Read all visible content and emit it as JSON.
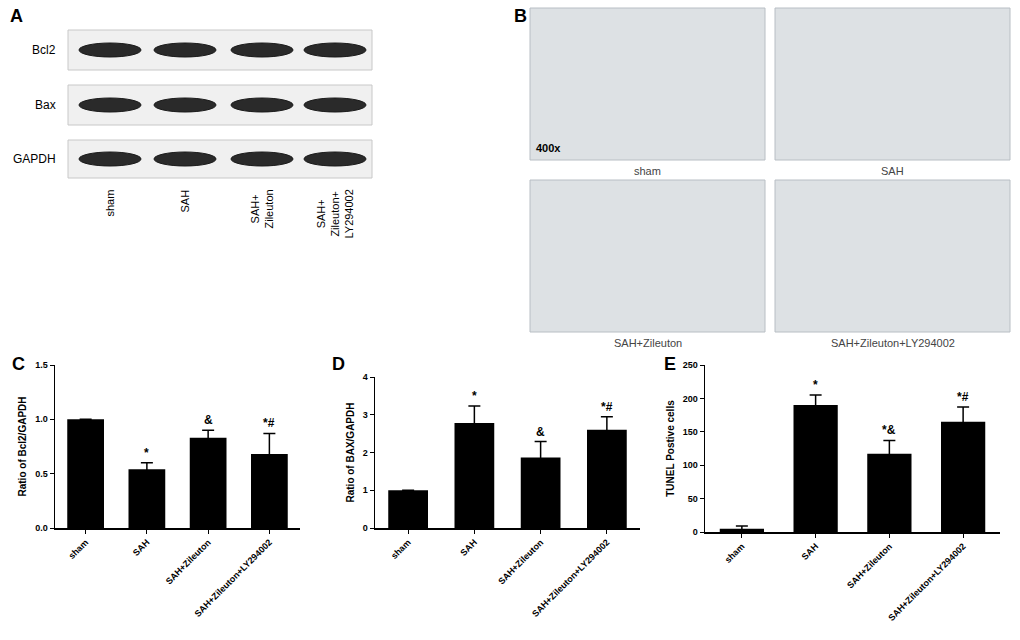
{
  "blot": {
    "panel": "A",
    "rows": [
      "Bcl2",
      "Bax",
      "GAPDH"
    ],
    "lanes": [
      [
        "sham"
      ],
      [
        "SAH"
      ],
      [
        "SAH+",
        "Zileuton"
      ],
      [
        "SAH+",
        "Zileuton+",
        "LY294002"
      ]
    ]
  },
  "micrographs": {
    "panel": "B",
    "magnification": "400x",
    "images": [
      "sham",
      "SAH",
      "SAH+Zileuton",
      "SAH+Zileuton+LY294002"
    ]
  },
  "chart_data": [
    {
      "panel": "C",
      "type": "bar",
      "categories": [
        "sham",
        "SAH",
        "SAH+Zileuton",
        "SAH+Zileuton+LY294002"
      ],
      "values": [
        1.0,
        0.54,
        0.83,
        0.68
      ],
      "errors": [
        0,
        0.06,
        0.07,
        0.19
      ],
      "significance": [
        null,
        "*",
        "&",
        "*#"
      ],
      "color": "#000000",
      "y_label": "Ratio of Bcl2/GAPDH",
      "ylim": [
        0,
        1.5
      ],
      "yticks": [
        {
          "value": 0,
          "label": "0.0"
        },
        {
          "value": 0.5,
          "label": "0.5"
        },
        {
          "value": 1,
          "label": "1.0"
        },
        {
          "value": 1.5,
          "label": "1.5"
        }
      ],
      "grid": false
    },
    {
      "panel": "D",
      "type": "bar",
      "categories": [
        "sham",
        "SAH",
        "SAH+Zileuton",
        "SAH+Zileuton+LY294002"
      ],
      "values": [
        1.0,
        2.78,
        1.87,
        2.6
      ],
      "errors": [
        0,
        0.45,
        0.42,
        0.35
      ],
      "significance": [
        null,
        "*",
        "&",
        "*#"
      ],
      "color": "#000000",
      "y_label": "Ratio of BAX/GAPDH",
      "ylim": [
        0,
        4
      ],
      "yticks": [
        0,
        1,
        2,
        3,
        4
      ],
      "grid": false
    },
    {
      "panel": "E",
      "type": "bar",
      "categories": [
        "sham",
        "SAH",
        "SAH+Zileuton",
        "SAH+Zileuton+LY294002"
      ],
      "values": [
        5,
        190,
        117,
        165
      ],
      "errors": [
        4,
        15,
        20,
        22
      ],
      "significance": [
        null,
        "*",
        "*&",
        "*#"
      ],
      "color": "#000000",
      "y_label": "TUNEL Postive cells",
      "ylim": [
        0,
        250
      ],
      "yticks": [
        0,
        50,
        100,
        150,
        200,
        250
      ],
      "grid": false
    }
  ]
}
